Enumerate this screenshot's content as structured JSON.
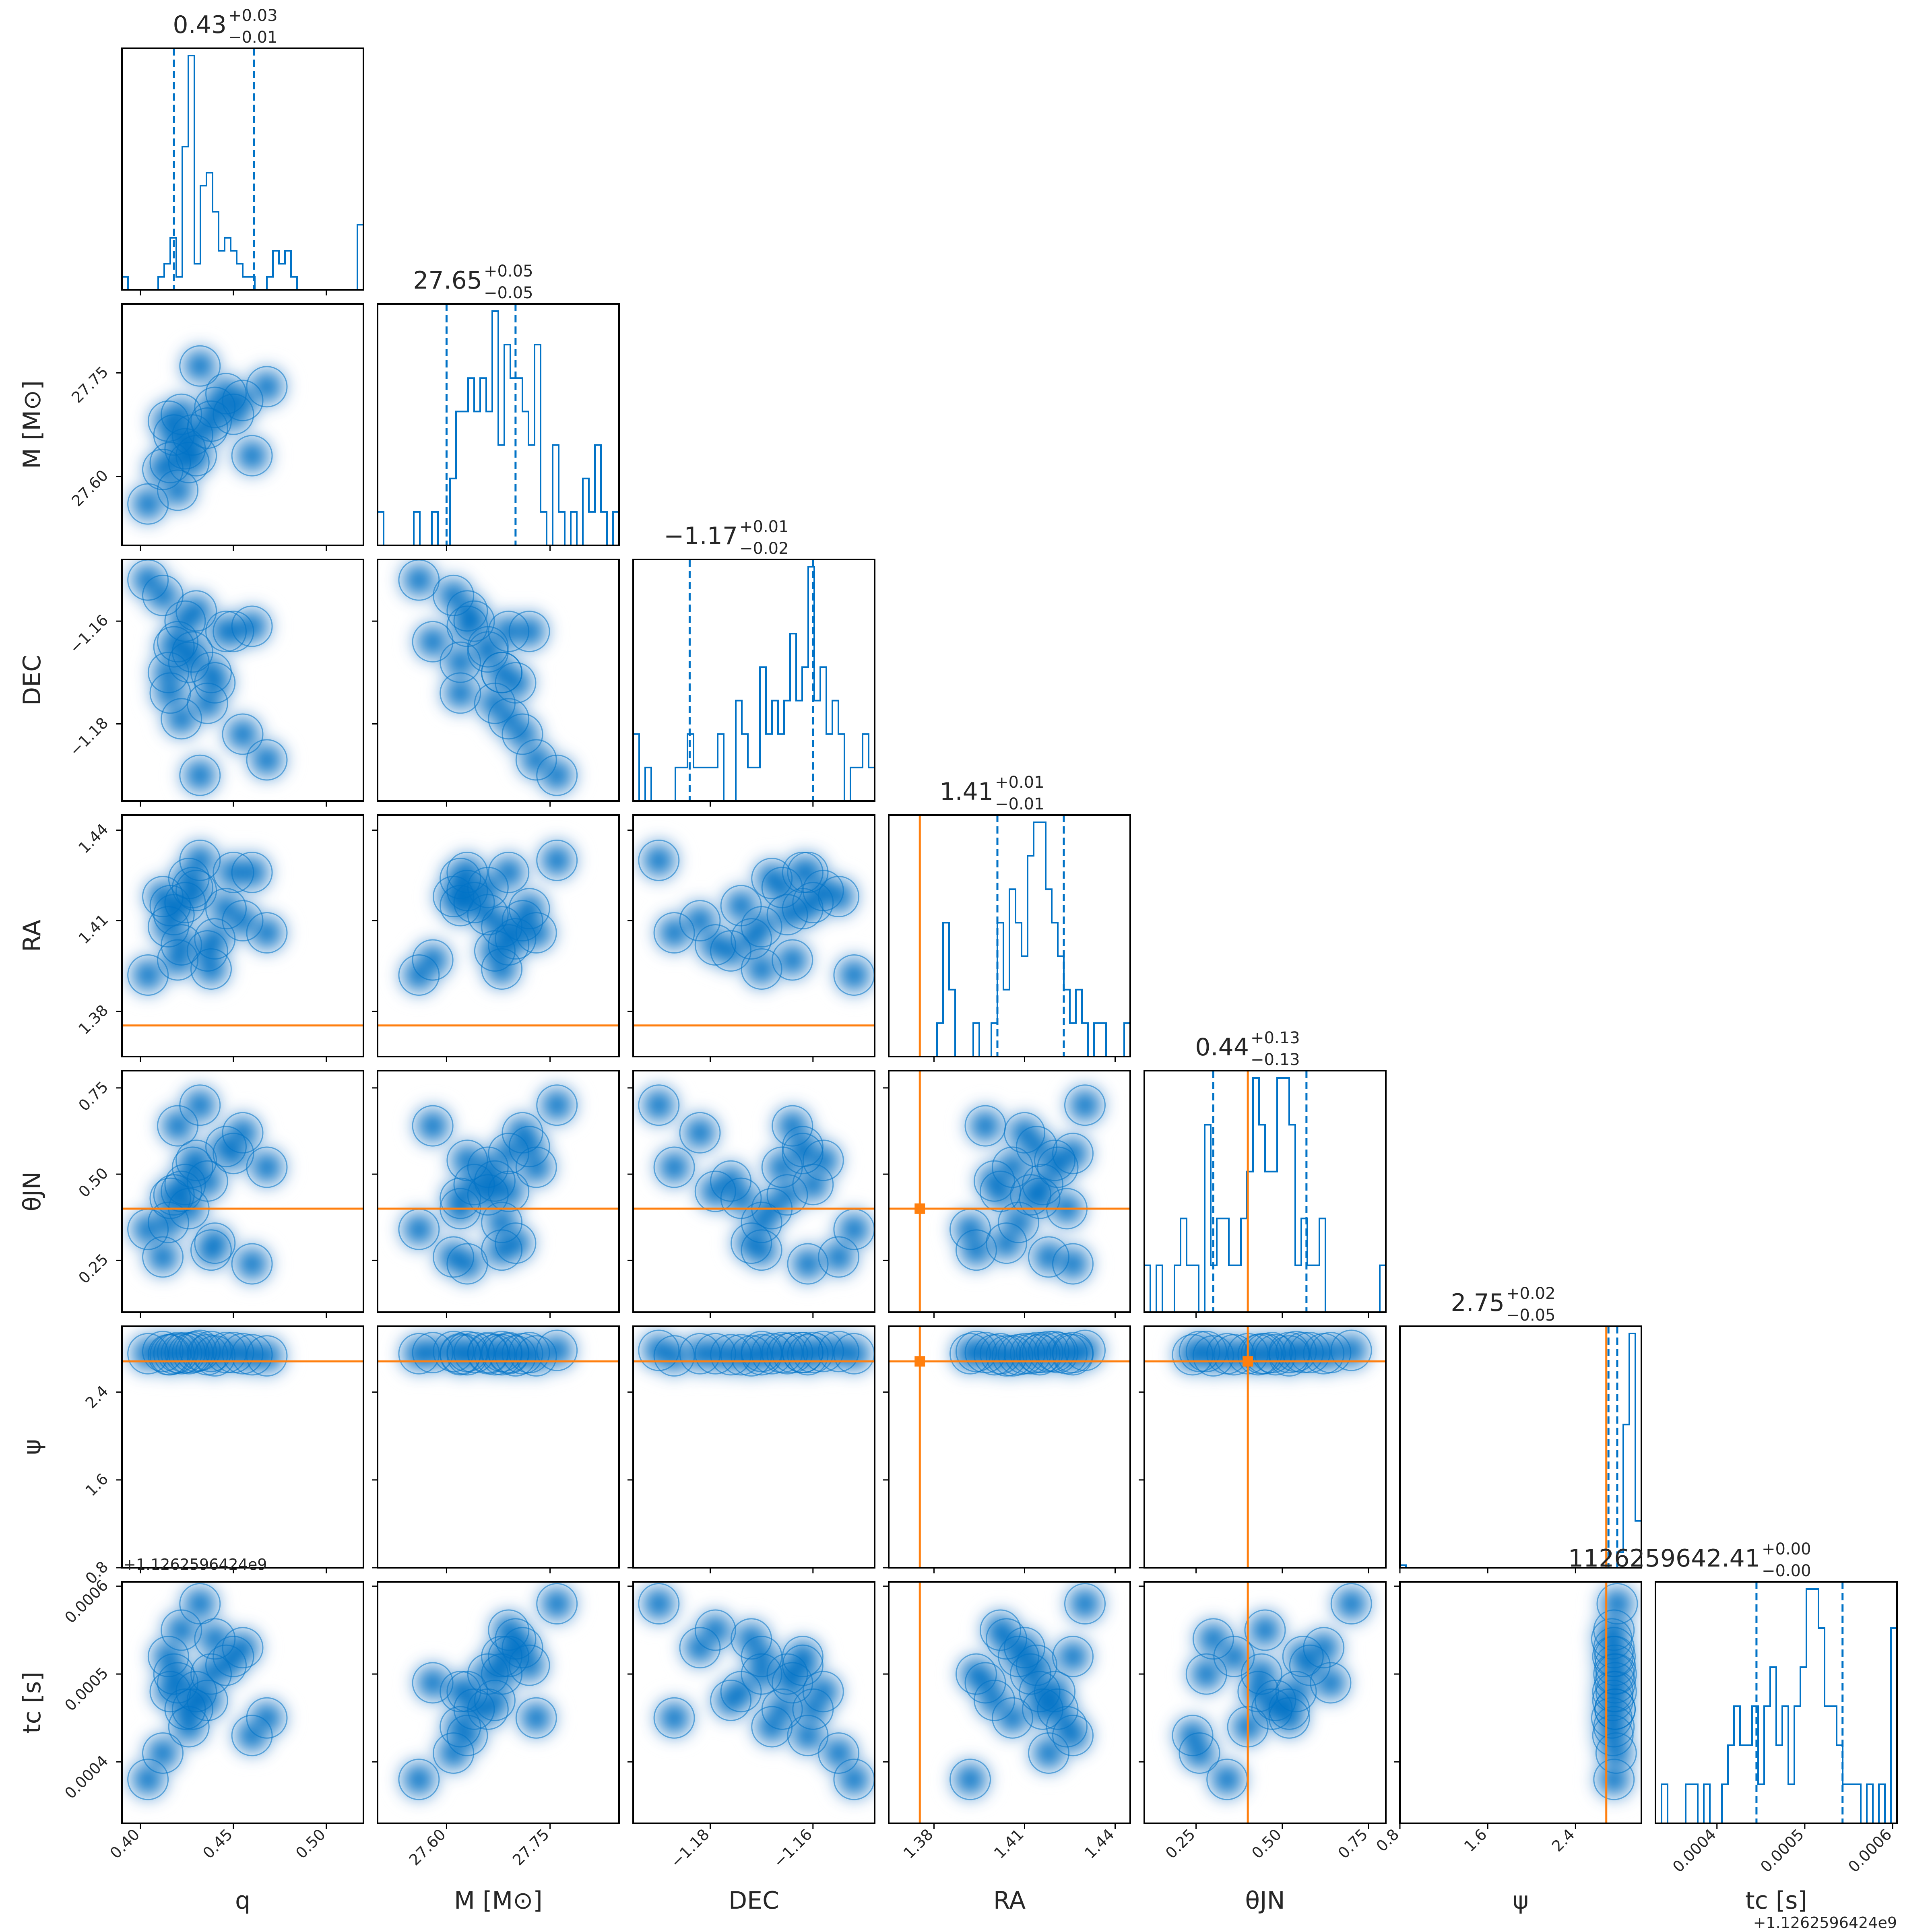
{
  "chart_data": {
    "type": "corner",
    "parameters": [
      {
        "key": "q",
        "label": "q",
        "range": [
          0.39,
          0.52
        ],
        "ticks": [
          0.4,
          0.45,
          0.5
        ],
        "tick_labels": [
          "0.40",
          "0.45",
          "0.50"
        ],
        "title": {
          "median": "0.43",
          "plus": "+0.03",
          "minus": "−0.01"
        },
        "quantiles": [
          0.418,
          0.461
        ],
        "truth": null,
        "hist": [
          1,
          0,
          0,
          0,
          0,
          0,
          1,
          2,
          4,
          1,
          11,
          18,
          2,
          8,
          9,
          6,
          3,
          4,
          3,
          2,
          1,
          1,
          0,
          0,
          1,
          3,
          2,
          3,
          1,
          0,
          0,
          0,
          0,
          0,
          0,
          0,
          0,
          0,
          0,
          5
        ]
      },
      {
        "key": "M",
        "label": "M [M⊙]",
        "range": [
          27.5,
          27.85
        ],
        "ticks": [
          27.6,
          27.75
        ],
        "tick_labels": [
          "27.60",
          "27.75"
        ],
        "title": {
          "median": "27.65",
          "plus": "+0.05",
          "minus": "−0.05"
        },
        "quantiles": [
          27.6,
          27.7
        ],
        "truth": null,
        "hist": [
          1,
          0,
          0,
          0,
          0,
          0,
          1,
          0,
          0,
          1,
          0,
          0,
          2,
          4,
          4,
          5,
          4,
          5,
          4,
          7,
          3,
          6,
          5,
          5,
          4,
          3,
          6,
          1,
          0,
          3,
          1,
          0,
          1,
          0,
          2,
          1,
          3,
          1,
          0,
          1
        ]
      },
      {
        "key": "DEC",
        "label": "DEC",
        "range": [
          -1.195,
          -1.148
        ],
        "ticks": [
          -1.18,
          -1.16
        ],
        "tick_labels": [
          "−1.18",
          "−1.16"
        ],
        "title": {
          "median": "−1.17",
          "plus": "+0.01",
          "minus": "−0.02"
        },
        "quantiles": [
          -1.184,
          -1.16
        ],
        "truth": null,
        "hist": [
          2,
          0,
          1,
          0,
          0,
          0,
          0,
          1,
          1,
          2,
          1,
          1,
          1,
          1,
          2,
          0,
          0,
          3,
          2,
          1,
          1,
          4,
          2,
          3,
          2,
          3,
          5,
          3,
          4,
          7,
          3,
          4,
          2,
          3,
          2,
          0,
          1,
          1,
          2,
          1
        ]
      },
      {
        "key": "RA",
        "label": "RA",
        "range": [
          1.365,
          1.445
        ],
        "ticks": [
          1.38,
          1.41,
          1.44
        ],
        "tick_labels": [
          "1.38",
          "1.41",
          "1.44"
        ],
        "title": {
          "median": "1.41",
          "plus": "+0.01",
          "minus": "−0.01"
        },
        "quantiles": [
          1.401,
          1.423
        ],
        "truth": 1.3753,
        "hist": [
          0,
          0,
          0,
          0,
          0,
          0,
          0,
          0,
          1,
          4,
          2,
          0,
          0,
          0,
          1,
          0,
          0,
          1,
          4,
          2,
          5,
          4,
          3,
          6,
          7,
          7,
          5,
          4,
          3,
          2,
          1,
          2,
          1,
          0,
          1,
          1,
          0,
          0,
          0,
          1
        ]
      },
      {
        "key": "theta_JN",
        "label": "θJN",
        "range": [
          0.1,
          0.8
        ],
        "ticks": [
          0.25,
          0.5,
          0.75
        ],
        "tick_labels": [
          "0.25",
          "0.50",
          "0.75"
        ],
        "title": {
          "median": "0.44",
          "plus": "+0.13",
          "minus": "−0.13"
        },
        "quantiles": [
          0.3,
          0.57
        ],
        "truth": 0.4,
        "hist": [
          1,
          0,
          1,
          0,
          0,
          1,
          2,
          1,
          1,
          0,
          4,
          1,
          2,
          2,
          1,
          1,
          2,
          3,
          5,
          4,
          3,
          3,
          5,
          5,
          4,
          1,
          2,
          1,
          1,
          2,
          0,
          0,
          0,
          0,
          0,
          0,
          0,
          0,
          0,
          1
        ]
      },
      {
        "key": "psi",
        "label": "ψ",
        "range": [
          0.8,
          3.0
        ],
        "ticks": [
          0.8,
          1.6,
          2.4
        ],
        "tick_labels": [
          "0.8",
          "1.6",
          "2.4"
        ],
        "title": {
          "median": "2.75",
          "plus": "+0.02",
          "minus": "−0.05"
        },
        "quantiles": [
          2.7,
          2.78
        ],
        "truth": 2.68,
        "hist": [
          1,
          0,
          0,
          0,
          0,
          0,
          0,
          0,
          0,
          0,
          0,
          0,
          0,
          0,
          0,
          0,
          0,
          0,
          0,
          0,
          0,
          0,
          0,
          0,
          0,
          0,
          0,
          0,
          0,
          0,
          0,
          0,
          0,
          0,
          0,
          0,
          6,
          55,
          90,
          18
        ]
      },
      {
        "key": "t_c",
        "label": "tc [s]",
        "range": [
          0.00033,
          0.000605
        ],
        "ticks": [
          0.0004,
          0.0005,
          0.0006
        ],
        "tick_labels": [
          "0.0004",
          "0.0005",
          "0.0006"
        ],
        "title": {
          "median": "1126259642.41",
          "plus": "+0.00",
          "minus": "−0.00"
        },
        "quantiles": [
          0.000445,
          0.000543
        ],
        "truth": null,
        "offset_text": "+1.1262596424e9",
        "hist": [
          0,
          1,
          0,
          0,
          0,
          1,
          1,
          0,
          1,
          0,
          0,
          1,
          2,
          3,
          2,
          2,
          3,
          1,
          3,
          4,
          2,
          3,
          1,
          3,
          4,
          6,
          6,
          5,
          3,
          3,
          2,
          1,
          1,
          1,
          0,
          1,
          0,
          1,
          0,
          5
        ]
      }
    ],
    "samples_2d_note": "",
    "blobs": [
      [
        0.418,
        27.66,
        -1.165,
        1.412,
        0.44,
        2.75,
        0.0005
      ],
      [
        0.424,
        27.64,
        -1.16,
        1.416,
        0.47,
        2.76,
        0.00046
      ],
      [
        0.415,
        27.68,
        -1.17,
        1.408,
        0.36,
        2.74,
        0.00052
      ],
      [
        0.43,
        27.63,
        -1.158,
        1.42,
        0.54,
        2.77,
        0.00048
      ],
      [
        0.44,
        27.7,
        -1.172,
        1.404,
        0.3,
        2.73,
        0.00054
      ],
      [
        0.426,
        27.62,
        -1.168,
        1.424,
        0.4,
        2.75,
        0.00044
      ],
      [
        0.446,
        27.72,
        -1.162,
        1.414,
        0.58,
        2.76,
        0.00051
      ],
      [
        0.436,
        27.67,
        -1.176,
        1.4,
        0.48,
        2.74,
        0.00047
      ],
      [
        0.412,
        27.61,
        -1.155,
        1.418,
        0.26,
        2.77,
        0.00041
      ],
      [
        0.455,
        27.71,
        -1.182,
        1.41,
        0.62,
        2.75,
        0.00053
      ],
      [
        0.42,
        27.58,
        -1.164,
        1.397,
        0.64,
        2.76,
        0.00049
      ],
      [
        0.468,
        27.73,
        -1.187,
        1.406,
        0.52,
        2.73,
        0.00045
      ],
      [
        0.404,
        27.56,
        -1.152,
        1.392,
        0.34,
        2.75,
        0.00038
      ],
      [
        0.432,
        27.76,
        -1.19,
        1.43,
        0.7,
        2.78,
        0.00058
      ],
      [
        0.46,
        27.63,
        -1.161,
        1.426,
        0.24,
        2.74,
        0.00043
      ],
      [
        0.422,
        27.69,
        -1.179,
        1.402,
        0.45,
        2.75,
        0.00055
      ],
      [
        0.428,
        27.66,
        -1.166,
        1.421,
        0.52,
        2.76,
        0.00046
      ],
      [
        0.438,
        27.68,
        -1.17,
        1.394,
        0.28,
        2.77,
        0.0005
      ],
      [
        0.416,
        27.62,
        -1.174,
        1.415,
        0.43,
        2.74,
        0.00048
      ],
      [
        0.45,
        27.69,
        -1.162,
        1.426,
        0.56,
        2.76,
        0.00052
      ]
    ],
    "colors": {
      "posterior": "#0072c6",
      "fill_dark": "#0072c6",
      "fill_mid": "#7fb3de",
      "fill_light": "#d6e6f4",
      "truth": "#ff7f0e",
      "axes": "#000000"
    }
  }
}
